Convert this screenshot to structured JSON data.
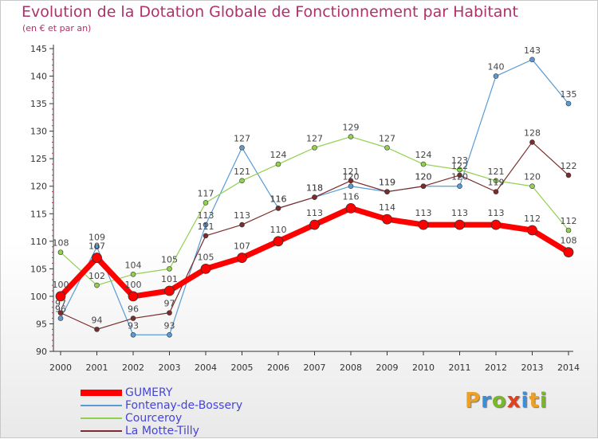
{
  "title": "Evolution de la Dotation Globale de Fonctionnement par Habitant",
  "subtitle": "(en € et par an)",
  "logo": {
    "letters": [
      "P",
      "r",
      "o",
      "x",
      "i",
      "t",
      "i"
    ],
    "colors": [
      "#f0a020",
      "#3a8fd8",
      "#7ab82a",
      "#e04020",
      "#3a8fd8",
      "#f0a020",
      "#7ab82a"
    ]
  },
  "chart_data": {
    "type": "line",
    "x": [
      "2000",
      "2001",
      "2002",
      "2003",
      "2004",
      "2005",
      "2006",
      "2007",
      "2008",
      "2009",
      "2010",
      "2011",
      "2012",
      "2013",
      "2014"
    ],
    "ylim": [
      90,
      145
    ],
    "yticks": [
      90,
      95,
      100,
      105,
      110,
      115,
      120,
      125,
      130,
      135,
      140,
      145
    ],
    "grid": false,
    "legend_position": "bottom-left",
    "series": [
      {
        "name": "Fontenay-de-Bossery",
        "color": "#5a9bd5",
        "width": 1.2,
        "marker_r": 3,
        "values": [
          96,
          109,
          93,
          93,
          113,
          127,
          116,
          118,
          120,
          119,
          120,
          120,
          140,
          143,
          135
        ],
        "labels": [
          "96",
          "109",
          "93",
          "93",
          "113",
          "127",
          "116",
          "118",
          "120",
          "119",
          "120",
          "120",
          "140",
          "143",
          "135"
        ]
      },
      {
        "name": "Courceroy",
        "color": "#92d050",
        "width": 1.2,
        "marker_r": 3,
        "values": [
          108,
          102,
          104,
          105,
          117,
          121,
          124,
          127,
          129,
          127,
          124,
          123,
          121,
          120,
          112
        ],
        "labels": [
          "108",
          "102",
          "104",
          "105",
          "117",
          "121",
          "124",
          "127",
          "129",
          "127",
          "124",
          "123",
          "121",
          "120",
          "112"
        ]
      },
      {
        "name": "La Motte-Tilly",
        "color": "#7b2c2c",
        "width": 1.2,
        "marker_r": 3,
        "values": [
          97,
          94,
          96,
          97,
          111,
          113,
          116,
          118,
          121,
          119,
          120,
          122,
          119,
          128,
          122
        ],
        "labels": [
          "97",
          "94",
          "96",
          "97",
          "111",
          "113",
          "116",
          "118",
          "121",
          "119",
          "120",
          "122",
          "119",
          "128",
          "122"
        ]
      },
      {
        "name": "GUMERY",
        "color": "#ff0000",
        "width": 7,
        "marker_r": 6,
        "values": [
          100,
          107,
          100,
          101,
          105,
          107,
          110,
          113,
          116,
          114,
          113,
          113,
          113,
          112,
          108
        ],
        "labels": [
          "100",
          "107",
          "100",
          "101",
          "105",
          "107",
          "110",
          "113",
          "116",
          "114",
          "113",
          "113",
          "113",
          "112",
          "108"
        ]
      }
    ],
    "legend": [
      {
        "name": "GUMERY",
        "color": "#ff0000",
        "thickness": 8
      },
      {
        "name": "Fontenay-de-Bossery",
        "color": "#5a9bd5",
        "thickness": 2
      },
      {
        "name": "Courceroy",
        "color": "#92d050",
        "thickness": 2
      },
      {
        "name": "La Motte-Tilly",
        "color": "#7b2c2c",
        "thickness": 2
      }
    ]
  }
}
